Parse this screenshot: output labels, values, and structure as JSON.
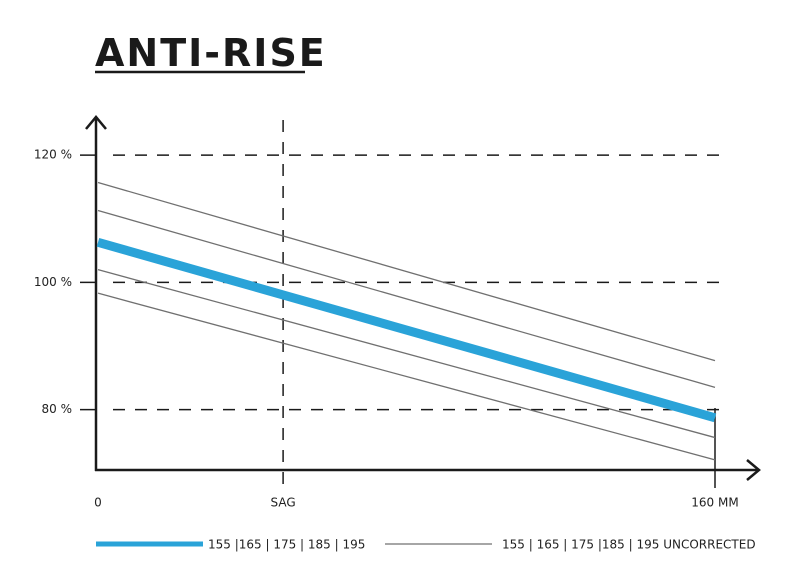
{
  "chart_data": {
    "type": "line",
    "title": "ANTI-RISE",
    "x": [
      0,
      160
    ],
    "xlim": [
      0,
      172
    ],
    "xticks": [
      0,
      {
        "value": 48,
        "label": "SAG"
      },
      {
        "value": 160,
        "label": "160 MM"
      }
    ],
    "ylim": [
      70.5,
      126
    ],
    "yticks": [
      {
        "value": 80,
        "label": "80 %"
      },
      {
        "value": 100,
        "label": "100 %"
      },
      {
        "value": 120,
        "label": "120 %"
      }
    ],
    "grid": true,
    "series": [
      {
        "name": "155 |165 | 175 | 185 | 195",
        "color": "#2aa3d8",
        "width": 9,
        "values": [
          [
            106.3,
            78.7
          ]
        ]
      },
      {
        "name": "155 | 165 | 175 |185 | 195 UNCORRECTED",
        "color": "#707070",
        "width": 1.3,
        "values": [
          [
            115.7,
            87.7
          ],
          [
            111.3,
            83.5
          ],
          [
            102.0,
            75.6
          ],
          [
            98.3,
            72.1
          ]
        ]
      }
    ]
  }
}
